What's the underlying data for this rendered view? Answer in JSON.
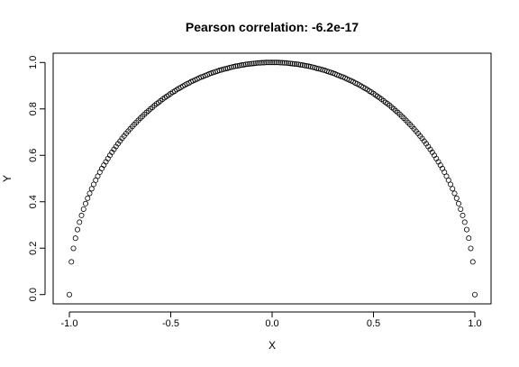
{
  "chart_data": {
    "type": "scatter",
    "title": "Pearson correlation: -6.2e-17",
    "xlabel": "X",
    "ylabel": "Y",
    "xlim": [
      -1.08,
      1.08
    ],
    "ylim": [
      -0.04,
      1.04
    ],
    "x_ticks": [
      -1.0,
      -0.5,
      0.0,
      0.5,
      1.0
    ],
    "x_tick_labels": [
      "-1.0",
      "-0.5",
      "0.0",
      "0.5",
      "1.0"
    ],
    "y_ticks": [
      0.0,
      0.2,
      0.4,
      0.6,
      0.8,
      1.0
    ],
    "y_tick_labels": [
      "0.0",
      "0.2",
      "0.4",
      "0.6",
      "0.8",
      "1.0"
    ],
    "grid": false,
    "marker": "open-circle",
    "series": [
      {
        "points": [
          [
            -1.0,
            0.0
          ],
          [
            -0.99,
            0.141
          ],
          [
            -0.98,
            0.199
          ],
          [
            -0.97,
            0.243
          ],
          [
            -0.96,
            0.28
          ],
          [
            -0.95,
            0.312
          ],
          [
            -0.94,
            0.341
          ],
          [
            -0.93,
            0.368
          ],
          [
            -0.92,
            0.392
          ],
          [
            -0.91,
            0.415
          ],
          [
            -0.9,
            0.436
          ],
          [
            -0.89,
            0.456
          ],
          [
            -0.88,
            0.475
          ],
          [
            -0.87,
            0.493
          ],
          [
            -0.86,
            0.51
          ],
          [
            -0.85,
            0.527
          ],
          [
            -0.84,
            0.543
          ],
          [
            -0.83,
            0.558
          ],
          [
            -0.82,
            0.572
          ],
          [
            -0.81,
            0.586
          ],
          [
            -0.8,
            0.6
          ],
          [
            -0.79,
            0.613
          ],
          [
            -0.78,
            0.626
          ],
          [
            -0.77,
            0.638
          ],
          [
            -0.76,
            0.65
          ],
          [
            -0.75,
            0.661
          ],
          [
            -0.74,
            0.673
          ],
          [
            -0.73,
            0.683
          ],
          [
            -0.72,
            0.694
          ],
          [
            -0.71,
            0.704
          ],
          [
            -0.7,
            0.714
          ],
          [
            -0.69,
            0.724
          ],
          [
            -0.68,
            0.733
          ],
          [
            -0.67,
            0.742
          ],
          [
            -0.66,
            0.751
          ],
          [
            -0.65,
            0.76
          ],
          [
            -0.64,
            0.768
          ],
          [
            -0.63,
            0.777
          ],
          [
            -0.62,
            0.785
          ],
          [
            -0.61,
            0.792
          ],
          [
            -0.6,
            0.8
          ],
          [
            -0.59,
            0.807
          ],
          [
            -0.58,
            0.815
          ],
          [
            -0.57,
            0.822
          ],
          [
            -0.56,
            0.828
          ],
          [
            -0.55,
            0.835
          ],
          [
            -0.54,
            0.842
          ],
          [
            -0.53,
            0.848
          ],
          [
            -0.52,
            0.854
          ],
          [
            -0.51,
            0.86
          ],
          [
            -0.5,
            0.866
          ],
          [
            -0.49,
            0.872
          ],
          [
            -0.48,
            0.877
          ],
          [
            -0.47,
            0.883
          ],
          [
            -0.46,
            0.888
          ],
          [
            -0.45,
            0.893
          ],
          [
            -0.44,
            0.898
          ],
          [
            -0.43,
            0.903
          ],
          [
            -0.42,
            0.908
          ],
          [
            -0.41,
            0.912
          ],
          [
            -0.4,
            0.917
          ],
          [
            -0.39,
            0.921
          ],
          [
            -0.38,
            0.925
          ],
          [
            -0.37,
            0.929
          ],
          [
            -0.36,
            0.933
          ],
          [
            -0.35,
            0.937
          ],
          [
            -0.34,
            0.94
          ],
          [
            -0.33,
            0.944
          ],
          [
            -0.32,
            0.947
          ],
          [
            -0.31,
            0.951
          ],
          [
            -0.3,
            0.954
          ],
          [
            -0.29,
            0.957
          ],
          [
            -0.28,
            0.96
          ],
          [
            -0.27,
            0.963
          ],
          [
            -0.26,
            0.966
          ],
          [
            -0.25,
            0.968
          ],
          [
            -0.24,
            0.971
          ],
          [
            -0.23,
            0.973
          ],
          [
            -0.22,
            0.975
          ],
          [
            -0.21,
            0.978
          ],
          [
            -0.2,
            0.98
          ],
          [
            -0.19,
            0.982
          ],
          [
            -0.18,
            0.984
          ],
          [
            -0.17,
            0.985
          ],
          [
            -0.16,
            0.987
          ],
          [
            -0.15,
            0.989
          ],
          [
            -0.14,
            0.99
          ],
          [
            -0.13,
            0.992
          ],
          [
            -0.12,
            0.993
          ],
          [
            -0.11,
            0.994
          ],
          [
            -0.1,
            0.995
          ],
          [
            -0.09,
            0.996
          ],
          [
            -0.08,
            0.997
          ],
          [
            -0.07,
            0.998
          ],
          [
            -0.06,
            0.998
          ],
          [
            -0.05,
            0.999
          ],
          [
            -0.04,
            0.999
          ],
          [
            -0.03,
            1.0
          ],
          [
            -0.02,
            1.0
          ],
          [
            -0.01,
            1.0
          ],
          [
            0.0,
            1.0
          ],
          [
            0.01,
            1.0
          ],
          [
            0.02,
            1.0
          ],
          [
            0.03,
            1.0
          ],
          [
            0.04,
            0.999
          ],
          [
            0.05,
            0.999
          ],
          [
            0.06,
            0.998
          ],
          [
            0.07,
            0.998
          ],
          [
            0.08,
            0.997
          ],
          [
            0.09,
            0.996
          ],
          [
            0.1,
            0.995
          ],
          [
            0.11,
            0.994
          ],
          [
            0.12,
            0.993
          ],
          [
            0.13,
            0.992
          ],
          [
            0.14,
            0.99
          ],
          [
            0.15,
            0.989
          ],
          [
            0.16,
            0.987
          ],
          [
            0.17,
            0.985
          ],
          [
            0.18,
            0.984
          ],
          [
            0.19,
            0.982
          ],
          [
            0.2,
            0.98
          ],
          [
            0.21,
            0.978
          ],
          [
            0.22,
            0.975
          ],
          [
            0.23,
            0.973
          ],
          [
            0.24,
            0.971
          ],
          [
            0.25,
            0.968
          ],
          [
            0.26,
            0.966
          ],
          [
            0.27,
            0.963
          ],
          [
            0.28,
            0.96
          ],
          [
            0.29,
            0.957
          ],
          [
            0.3,
            0.954
          ],
          [
            0.31,
            0.951
          ],
          [
            0.32,
            0.947
          ],
          [
            0.33,
            0.944
          ],
          [
            0.34,
            0.94
          ],
          [
            0.35,
            0.937
          ],
          [
            0.36,
            0.933
          ],
          [
            0.37,
            0.929
          ],
          [
            0.38,
            0.925
          ],
          [
            0.39,
            0.921
          ],
          [
            0.4,
            0.917
          ],
          [
            0.41,
            0.912
          ],
          [
            0.42,
            0.908
          ],
          [
            0.43,
            0.903
          ],
          [
            0.44,
            0.898
          ],
          [
            0.45,
            0.893
          ],
          [
            0.46,
            0.888
          ],
          [
            0.47,
            0.883
          ],
          [
            0.48,
            0.877
          ],
          [
            0.49,
            0.872
          ],
          [
            0.5,
            0.866
          ],
          [
            0.51,
            0.86
          ],
          [
            0.52,
            0.854
          ],
          [
            0.53,
            0.848
          ],
          [
            0.54,
            0.842
          ],
          [
            0.55,
            0.835
          ],
          [
            0.56,
            0.828
          ],
          [
            0.57,
            0.822
          ],
          [
            0.58,
            0.815
          ],
          [
            0.59,
            0.807
          ],
          [
            0.6,
            0.8
          ],
          [
            0.61,
            0.792
          ],
          [
            0.62,
            0.785
          ],
          [
            0.63,
            0.777
          ],
          [
            0.64,
            0.768
          ],
          [
            0.65,
            0.76
          ],
          [
            0.66,
            0.751
          ],
          [
            0.67,
            0.742
          ],
          [
            0.68,
            0.733
          ],
          [
            0.69,
            0.724
          ],
          [
            0.7,
            0.714
          ],
          [
            0.71,
            0.704
          ],
          [
            0.72,
            0.694
          ],
          [
            0.73,
            0.683
          ],
          [
            0.74,
            0.673
          ],
          [
            0.75,
            0.661
          ],
          [
            0.76,
            0.65
          ],
          [
            0.77,
            0.638
          ],
          [
            0.78,
            0.626
          ],
          [
            0.79,
            0.613
          ],
          [
            0.8,
            0.6
          ],
          [
            0.81,
            0.586
          ],
          [
            0.82,
            0.572
          ],
          [
            0.83,
            0.558
          ],
          [
            0.84,
            0.543
          ],
          [
            0.85,
            0.527
          ],
          [
            0.86,
            0.51
          ],
          [
            0.87,
            0.493
          ],
          [
            0.88,
            0.475
          ],
          [
            0.89,
            0.456
          ],
          [
            0.9,
            0.436
          ],
          [
            0.91,
            0.415
          ],
          [
            0.92,
            0.392
          ],
          [
            0.93,
            0.368
          ],
          [
            0.94,
            0.341
          ],
          [
            0.95,
            0.312
          ],
          [
            0.96,
            0.28
          ],
          [
            0.97,
            0.243
          ],
          [
            0.98,
            0.199
          ],
          [
            0.99,
            0.141
          ],
          [
            1.0,
            0.0
          ]
        ]
      }
    ]
  }
}
